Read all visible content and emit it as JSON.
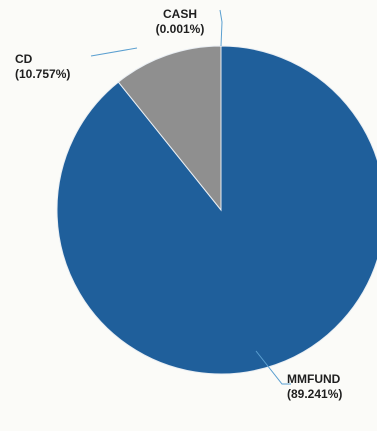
{
  "chart_data": {
    "type": "pie",
    "title": "",
    "slices": [
      {
        "label": "MMFUND",
        "percent_label": "(89.241%)",
        "value": 89.241,
        "color": "#1f5f9b"
      },
      {
        "label": "CD",
        "percent_label": "(10.757%)",
        "value": 10.757,
        "color": "#8f8f8f"
      },
      {
        "label": "CASH",
        "percent_label": "(0.001%)",
        "value": 0.001,
        "color": "#1f5f9b"
      }
    ],
    "start_angle_deg": 0,
    "direction": "clockwise",
    "leader_line_color": "#5a9fd0",
    "legend": "none"
  }
}
